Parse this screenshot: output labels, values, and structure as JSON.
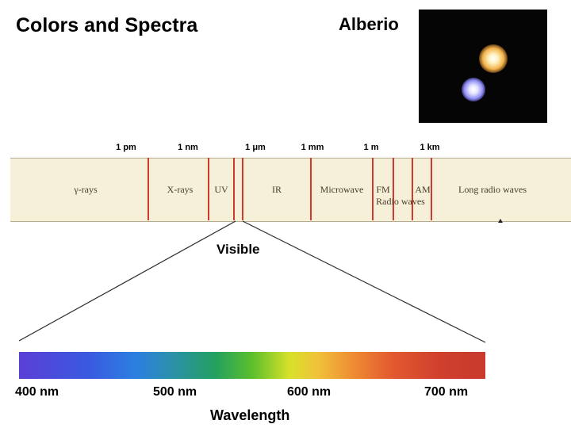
{
  "title": "Colors and Spectra",
  "star": {
    "label": "Alberio"
  },
  "scale_labels": [
    "1 pm",
    "1 nm",
    "1 μm",
    "1 mm",
    "1 m",
    "1 km"
  ],
  "regions": [
    {
      "label": "γ-rays"
    },
    {
      "label": "X-rays"
    },
    {
      "label": "UV"
    },
    {
      "label": "IR"
    },
    {
      "label": "Microwave"
    },
    {
      "label": "FM"
    },
    {
      "label": "Radio waves"
    },
    {
      "label": "AM"
    },
    {
      "label": "Long radio waves"
    }
  ],
  "visible_label": "Visible",
  "wavelength_ticks": [
    "400 nm",
    "500 nm",
    "600 nm",
    "700 nm"
  ],
  "axis_title": "Wavelength",
  "colors": {
    "divider": "#d23a2c",
    "band_fill": "#f6f0d9"
  }
}
